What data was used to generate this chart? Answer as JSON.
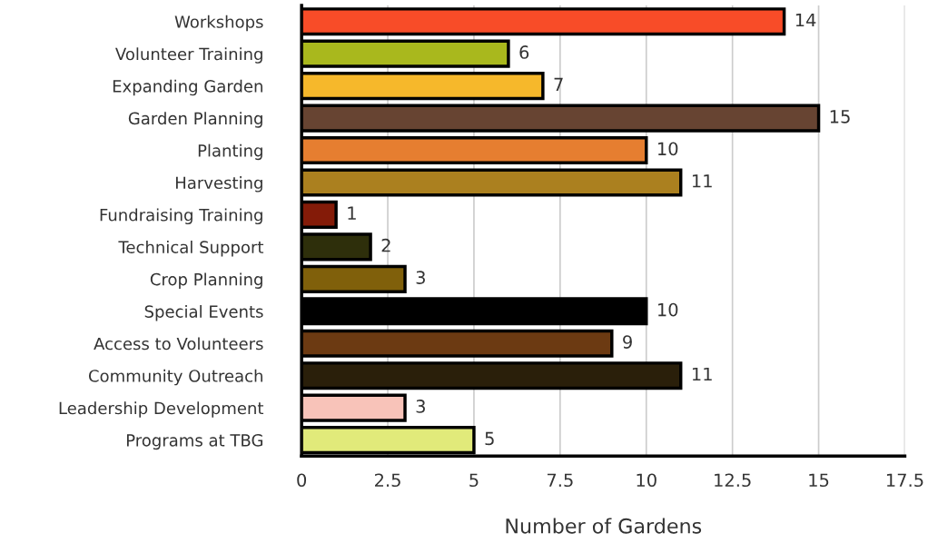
{
  "chart_data": {
    "type": "bar",
    "orientation": "horizontal",
    "xlabel": "Number of Gardens",
    "categories": [
      "Workshops",
      "Volunteer Training",
      "Expanding Garden",
      "Garden Planning",
      "Planting",
      "Harvesting",
      "Fundraising Training",
      "Technical Support",
      "Crop Planning",
      "Special Events",
      "Access to Volunteers",
      "Community Outreach",
      "Leadership Development",
      "Programs at TBG"
    ],
    "values": [
      14,
      6,
      7,
      15,
      10,
      11,
      1,
      2,
      3,
      10,
      9,
      11,
      3,
      5
    ],
    "colors": [
      "#f84c28",
      "#a9b81d",
      "#f6b82b",
      "#674432",
      "#e67e30",
      "#ab801f",
      "#841b08",
      "#2e2f0b",
      "#80600b",
      "#000000",
      "#6c3a12",
      "#2a1f0a",
      "#f8c3b9",
      "#e1ea7a"
    ],
    "xlim": [
      0,
      17.5
    ],
    "xticks": [
      0,
      2.5,
      5,
      7.5,
      10,
      12.5,
      15,
      17.5
    ],
    "grid": "x",
    "data_labels": true
  }
}
